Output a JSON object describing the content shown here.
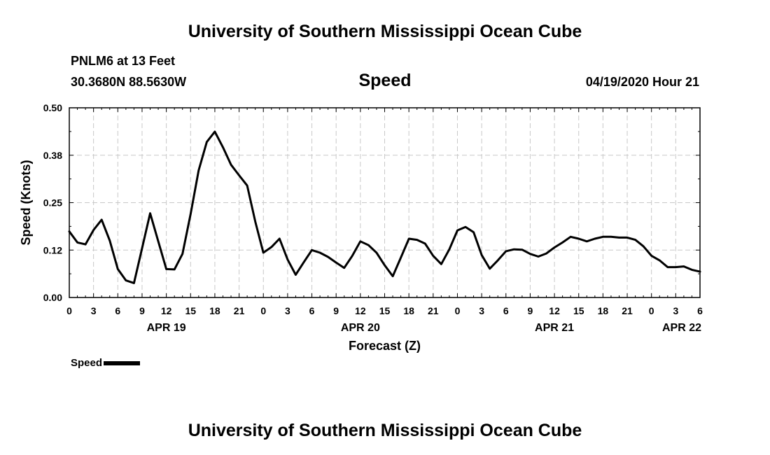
{
  "header": {
    "title": "University of Southern Mississippi Ocean Cube",
    "station": "PNLM6 at 13 Feet",
    "coordinates": "30.3680N 88.5630W",
    "issued": "04/19/2020 Hour 21"
  },
  "footer": {
    "title": "University of Southern Mississippi Ocean Cube"
  },
  "chart_data": {
    "type": "line",
    "title": "Speed",
    "xlabel": "Forecast (Z)",
    "ylabel": "Speed (Knots)",
    "ylim": [
      0,
      0.5
    ],
    "xlim": [
      0,
      78
    ],
    "grid": true,
    "legend_position": "bottom-left",
    "x_tick_labels": [
      "0",
      "3",
      "6",
      "9",
      "12",
      "15",
      "18",
      "21",
      "0",
      "3",
      "6",
      "9",
      "12",
      "15",
      "18",
      "21",
      "0",
      "3",
      "6",
      "9",
      "12",
      "15",
      "18",
      "21",
      "0",
      "3",
      "6"
    ],
    "y_tick_labels": [
      "0.00",
      "0.12",
      "0.25",
      "0.38",
      "0.50"
    ],
    "date_labels": [
      {
        "label": "APR 19",
        "x": 12
      },
      {
        "label": "APR 20",
        "x": 36
      },
      {
        "label": "APR 21",
        "x": 60
      },
      {
        "label": "APR 22",
        "x": 78
      }
    ],
    "series": [
      {
        "name": "Speed",
        "color": "#000000",
        "x": [
          0,
          1,
          2,
          3,
          4,
          5,
          6,
          7,
          8,
          9,
          10,
          11,
          12,
          13,
          14,
          15,
          16,
          17,
          18,
          19,
          20,
          21,
          22,
          23,
          24,
          25,
          26,
          27,
          28,
          29,
          30,
          31,
          32,
          33,
          34,
          35,
          36,
          37,
          38,
          39,
          40,
          41,
          42,
          43,
          44,
          45,
          46,
          47,
          48,
          49,
          50,
          51,
          52,
          53,
          54,
          55,
          56,
          57,
          58,
          59,
          60,
          61,
          62,
          63,
          64,
          65,
          66,
          67,
          68,
          69,
          70,
          71,
          72,
          73,
          74,
          75,
          76,
          77,
          78
        ],
        "values": [
          0.174,
          0.145,
          0.14,
          0.178,
          0.205,
          0.15,
          0.075,
          0.045,
          0.038,
          0.13,
          0.222,
          0.148,
          0.075,
          0.074,
          0.115,
          0.22,
          0.335,
          0.41,
          0.437,
          0.396,
          0.35,
          0.322,
          0.295,
          0.2,
          0.118,
          0.133,
          0.155,
          0.1,
          0.06,
          0.093,
          0.125,
          0.118,
          0.107,
          0.092,
          0.078,
          0.11,
          0.148,
          0.138,
          0.118,
          0.085,
          0.056,
          0.105,
          0.155,
          0.152,
          0.142,
          0.11,
          0.088,
          0.127,
          0.177,
          0.186,
          0.172,
          0.112,
          0.076,
          0.098,
          0.122,
          0.127,
          0.126,
          0.115,
          0.108,
          0.116,
          0.132,
          0.145,
          0.16,
          0.155,
          0.148,
          0.155,
          0.16,
          0.16,
          0.158,
          0.158,
          0.152,
          0.135,
          0.11,
          0.098,
          0.08,
          0.08,
          0.082,
          0.073,
          0.068
        ]
      }
    ]
  }
}
